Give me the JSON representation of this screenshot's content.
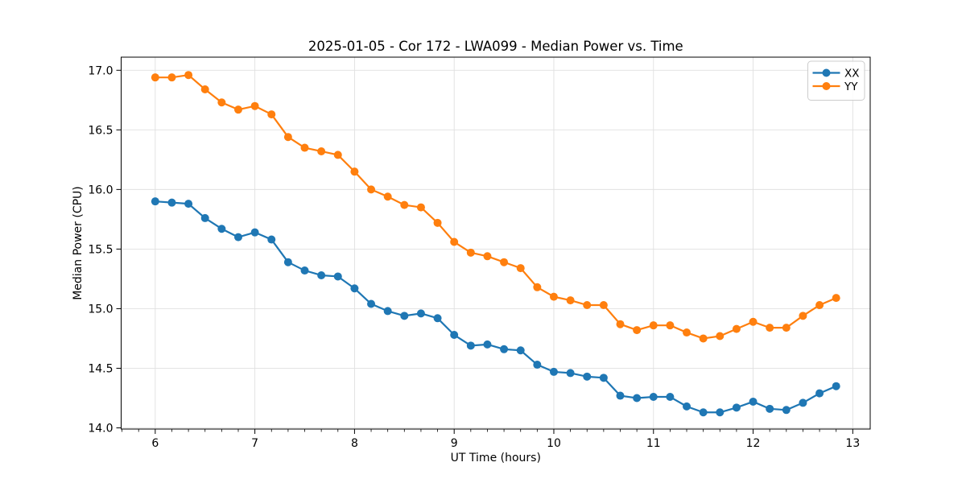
{
  "figure": {
    "background": "#ffffff",
    "grid_color": "#e0e0e0",
    "spine_color": "#000000"
  },
  "chart_data": {
    "type": "line",
    "title": "2025-01-05 - Cor 172 - LWA099 - Median Power vs. Time",
    "xlabel": "UT Time (hours)",
    "ylabel": "Median Power (CPU)",
    "grid": true,
    "legend_position": "upper right",
    "xlim": [
      5.658,
      13.175
    ],
    "ylim": [
      13.99,
      17.11
    ],
    "xticks": [
      6,
      7,
      8,
      9,
      10,
      11,
      12,
      13
    ],
    "xtick_labels": [
      "6",
      "7",
      "8",
      "9",
      "10",
      "11",
      "12",
      "13"
    ],
    "x_minor_step": 0.166667,
    "yticks": [
      14.0,
      14.5,
      15.0,
      15.5,
      16.0,
      16.5,
      17.0
    ],
    "ytick_labels": [
      "14.0",
      "14.5",
      "15.0",
      "15.5",
      "16.0",
      "16.5",
      "17.0"
    ],
    "x": [
      6.0,
      6.1667,
      6.3333,
      6.5,
      6.6667,
      6.8333,
      7.0,
      7.1667,
      7.3333,
      7.5,
      7.6667,
      7.8333,
      8.0,
      8.1667,
      8.3333,
      8.5,
      8.6667,
      8.8333,
      9.0,
      9.1667,
      9.3333,
      9.5,
      9.6667,
      9.8333,
      10.0,
      10.1667,
      10.3333,
      10.5,
      10.6667,
      10.8333,
      11.0,
      11.1667,
      11.3333,
      11.5,
      11.6667,
      11.8333,
      12.0,
      12.1667,
      12.3333,
      12.5,
      12.6667,
      12.8333
    ],
    "series": [
      {
        "name": "XX",
        "color": "#1f77b4",
        "values": [
          15.9,
          15.89,
          15.88,
          15.76,
          15.67,
          15.6,
          15.64,
          15.58,
          15.39,
          15.32,
          15.28,
          15.27,
          15.17,
          15.04,
          14.98,
          14.94,
          14.96,
          14.92,
          14.78,
          14.69,
          14.7,
          14.66,
          14.65,
          14.53,
          14.47,
          14.46,
          14.43,
          14.42,
          14.27,
          14.25,
          14.26,
          14.26,
          14.18,
          14.13,
          14.13,
          14.17,
          14.22,
          14.16,
          14.15,
          14.21,
          14.29,
          14.35
        ]
      },
      {
        "name": "YY",
        "color": "#ff7f0e",
        "values": [
          16.94,
          16.94,
          16.96,
          16.84,
          16.73,
          16.67,
          16.7,
          16.63,
          16.44,
          16.35,
          16.32,
          16.29,
          16.15,
          16.0,
          15.94,
          15.87,
          15.85,
          15.72,
          15.56,
          15.47,
          15.44,
          15.39,
          15.34,
          15.18,
          15.1,
          15.07,
          15.03,
          15.03,
          14.87,
          14.82,
          14.86,
          14.86,
          14.8,
          14.75,
          14.77,
          14.83,
          14.89,
          14.84,
          14.84,
          14.94,
          15.03,
          15.09
        ]
      }
    ]
  }
}
